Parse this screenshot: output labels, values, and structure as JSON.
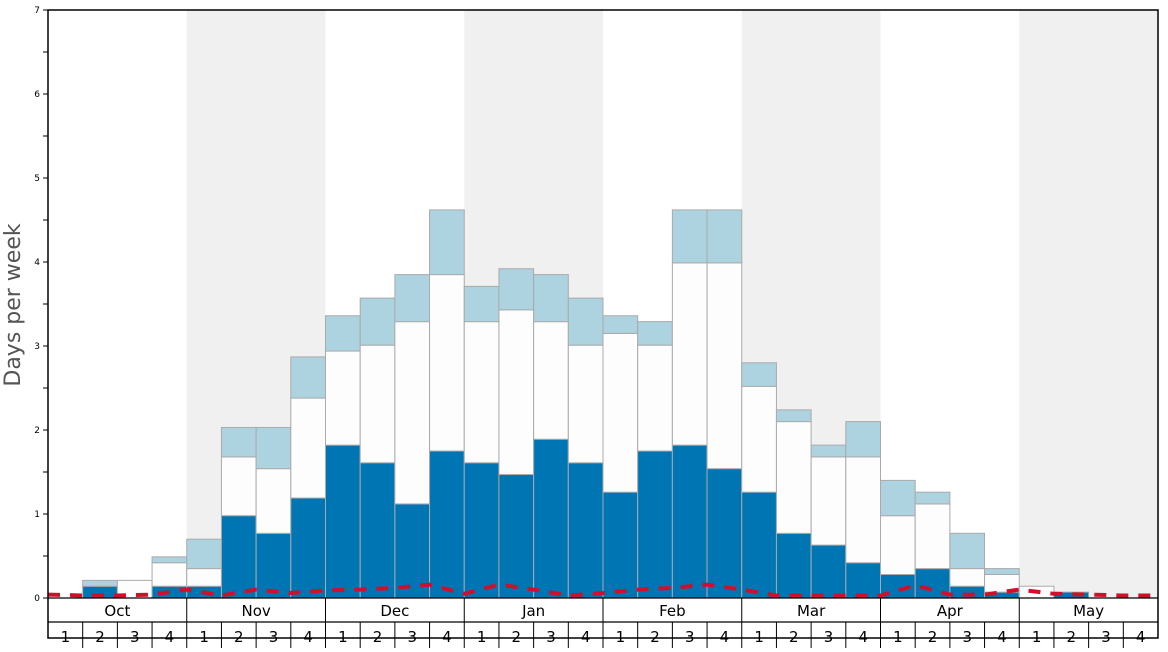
{
  "chart_data": {
    "type": "bar",
    "ylabel": "Days per week",
    "ylim": [
      0,
      7
    ],
    "y_ticks": [
      "0",
      "1",
      "2",
      "3",
      "4",
      "5",
      "6",
      "7"
    ],
    "months": [
      "Oct",
      "Nov",
      "Dec",
      "Jan",
      "Feb",
      "Mar",
      "Apr",
      "May"
    ],
    "week_labels": [
      "1",
      "2",
      "3",
      "4"
    ],
    "stacked": true,
    "series": [
      {
        "values": [
          0,
          0.14,
          0,
          0.14,
          0.14,
          0.98,
          0.77,
          1.19,
          1.82,
          1.61,
          1.12,
          1.75,
          1.61,
          1.47,
          1.89,
          1.61,
          1.26,
          1.75,
          1.82,
          1.54,
          1.26,
          0.77,
          0.63,
          0.42,
          0.28,
          0.35,
          0.14,
          0.07,
          0,
          0.07,
          0,
          0
        ]
      },
      {
        "values": [
          0,
          0,
          0.21,
          0.28,
          0.21,
          0.7,
          0.77,
          1.19,
          1.12,
          1.4,
          2.17,
          2.1,
          1.68,
          1.96,
          1.4,
          1.4,
          1.89,
          1.26,
          2.17,
          2.45,
          1.26,
          1.33,
          1.05,
          1.26,
          0.7,
          0.77,
          0.21,
          0.21,
          0.14,
          0,
          0,
          0
        ]
      },
      {
        "values": [
          0,
          0.07,
          0,
          0.07,
          0.35,
          0.35,
          0.49,
          0.49,
          0.42,
          0.56,
          0.56,
          0.77,
          0.42,
          0.49,
          0.56,
          0.56,
          0.21,
          0.28,
          0.63,
          0.63,
          0.28,
          0.14,
          0.14,
          0.42,
          0.42,
          0.14,
          0.42,
          0.07,
          0,
          0,
          0,
          0
        ]
      }
    ],
    "colors": {
      "series": [
        "#0075b4",
        "#fdfdfd",
        "#add3e0"
      ],
      "bar_stroke": "#aaaaaa",
      "band_shade": "#f0f0f0",
      "trend": "#d0102a"
    },
    "trend_line": {
      "style": "dashed",
      "values": [
        0.04,
        0.03,
        0.03,
        0.04,
        0.1,
        0.03,
        0.1,
        0.06,
        0.09,
        0.1,
        0.12,
        0.16,
        0.05,
        0.16,
        0.1,
        0.03,
        0.06,
        0.1,
        0.12,
        0.16,
        0.1,
        0.03,
        0.03,
        0.03,
        0.03,
        0.15,
        0.04,
        0.04,
        0.1,
        0.05,
        0.04,
        0.03,
        0.03
      ]
    }
  }
}
